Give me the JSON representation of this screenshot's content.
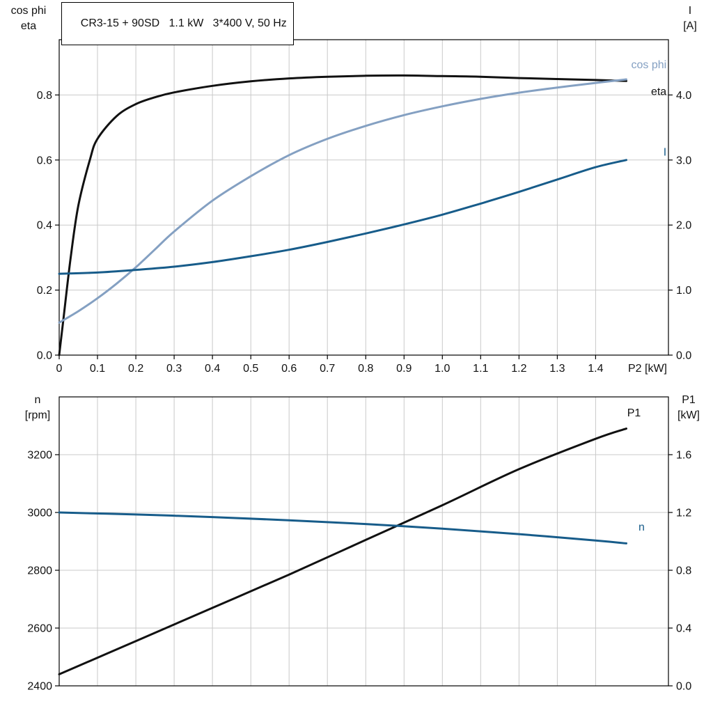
{
  "colors": {
    "black": "#111111",
    "light_blue": "#84a0c2",
    "dark_blue": "#175c8a",
    "grid": "#c9c9c9",
    "frame": "#000000",
    "text": "#111111",
    "background": "#ffffff"
  },
  "chart_data": [
    {
      "type": "line",
      "title": "CR3-15 + 90SD   1.1 kW   3*400 V, 50 Hz",
      "xlabel": "P2 [kW]",
      "xlim": [
        0,
        1.59
      ],
      "grid": true,
      "show_x_tick_labels": true,
      "x_ticks": {
        "values": [
          0,
          0.1,
          0.2,
          0.3,
          0.4,
          0.5,
          0.6,
          0.7,
          0.8,
          0.9,
          1.0,
          1.1,
          1.2,
          1.3,
          1.4
        ],
        "labels": [
          "0",
          "0.1",
          "0.2",
          "0.3",
          "0.4",
          "0.5",
          "0.6",
          "0.7",
          "0.8",
          "0.9",
          "1.0",
          "1.1",
          "1.2",
          "1.3",
          "1.4"
        ]
      },
      "left_axis": {
        "header": [
          "cos phi",
          "eta"
        ],
        "lim": [
          0,
          0.97
        ],
        "ticks": {
          "values": [
            0,
            0.2,
            0.4,
            0.6,
            0.8
          ],
          "labels": [
            "0.0",
            "0.2",
            "0.4",
            "0.6",
            "0.8"
          ]
        }
      },
      "right_axis": {
        "header": [
          "I",
          "[A]"
        ],
        "lim": [
          0,
          4.85
        ],
        "ticks": {
          "values": [
            0,
            1,
            2,
            3,
            4
          ],
          "labels": [
            "0.0",
            "1.0",
            "2.0",
            "3.0",
            "4.0"
          ]
        }
      },
      "series": [
        {
          "name": "eta",
          "axis": "left",
          "color_key": "black",
          "x": [
            0,
            0.01,
            0.03,
            0.05,
            0.08,
            0.1,
            0.15,
            0.2,
            0.25,
            0.3,
            0.4,
            0.5,
            0.6,
            0.7,
            0.8,
            0.9,
            1.0,
            1.1,
            1.2,
            1.3,
            1.4,
            1.48
          ],
          "y": [
            0,
            0.1,
            0.3,
            0.46,
            0.6,
            0.665,
            0.735,
            0.772,
            0.793,
            0.808,
            0.828,
            0.842,
            0.851,
            0.856,
            0.859,
            0.86,
            0.858,
            0.856,
            0.852,
            0.849,
            0.846,
            0.843
          ],
          "label": {
            "text": "eta",
            "x": 1.585,
            "y": 0.81,
            "anchor": "end"
          }
        },
        {
          "name": "cos phi",
          "axis": "left",
          "color_key": "light_blue",
          "x": [
            0,
            0.05,
            0.1,
            0.15,
            0.2,
            0.25,
            0.3,
            0.4,
            0.5,
            0.6,
            0.7,
            0.8,
            0.9,
            1.0,
            1.1,
            1.2,
            1.3,
            1.4,
            1.48
          ],
          "y": [
            0.1,
            0.135,
            0.175,
            0.22,
            0.27,
            0.325,
            0.38,
            0.475,
            0.55,
            0.615,
            0.665,
            0.705,
            0.738,
            0.765,
            0.788,
            0.807,
            0.823,
            0.837,
            0.848
          ],
          "label": {
            "text": "cos phi",
            "x": 1.585,
            "y": 0.893,
            "anchor": "end"
          }
        },
        {
          "name": "I",
          "axis": "right",
          "color_key": "dark_blue",
          "x": [
            0,
            0.1,
            0.2,
            0.3,
            0.4,
            0.5,
            0.6,
            0.7,
            0.8,
            0.9,
            1.0,
            1.1,
            1.2,
            1.3,
            1.4,
            1.48
          ],
          "y": [
            1.25,
            1.27,
            1.31,
            1.36,
            1.43,
            1.52,
            1.62,
            1.74,
            1.87,
            2.01,
            2.16,
            2.33,
            2.51,
            2.7,
            2.89,
            3.0
          ],
          "label": {
            "text": "I",
            "x": 1.585,
            "y": 3.12,
            "anchor": "end"
          }
        }
      ]
    },
    {
      "type": "line",
      "title": "",
      "xlabel": "",
      "xlim": [
        0,
        1.59
      ],
      "grid": true,
      "show_x_tick_labels": false,
      "x_ticks": {
        "values": [
          0,
          0.1,
          0.2,
          0.3,
          0.4,
          0.5,
          0.6,
          0.7,
          0.8,
          0.9,
          1.0,
          1.1,
          1.2,
          1.3,
          1.4
        ],
        "labels": [
          "",
          "",
          "",
          "",
          "",
          "",
          "",
          "",
          "",
          "",
          "",
          "",
          "",
          "",
          ""
        ]
      },
      "left_axis": {
        "header": [
          "n",
          "[rpm]"
        ],
        "lim": [
          2400,
          3400
        ],
        "ticks": {
          "values": [
            2400,
            2600,
            2800,
            3000,
            3200
          ],
          "labels": [
            "2400",
            "2600",
            "2800",
            "3000",
            "3200"
          ]
        }
      },
      "right_axis": {
        "header": [
          "P1",
          "[kW]"
        ],
        "lim": [
          0,
          2.0
        ],
        "ticks": {
          "values": [
            0,
            0.4,
            0.8,
            1.2,
            1.6
          ],
          "labels": [
            "0.0",
            "0.4",
            "0.8",
            "1.2",
            "1.6"
          ]
        }
      },
      "series": [
        {
          "name": "P1",
          "axis": "right",
          "color_key": "black",
          "x": [
            0,
            0.2,
            0.4,
            0.6,
            0.8,
            1.0,
            1.2,
            1.4,
            1.48
          ],
          "y": [
            0.08,
            0.31,
            0.54,
            0.77,
            1.01,
            1.25,
            1.5,
            1.71,
            1.78
          ],
          "label": {
            "text": "P1",
            "x": 1.5,
            "y": 1.89,
            "anchor": "middle"
          }
        },
        {
          "name": "n",
          "axis": "left",
          "color_key": "dark_blue",
          "x": [
            0,
            0.2,
            0.4,
            0.6,
            0.8,
            1.0,
            1.2,
            1.4,
            1.48
          ],
          "y": [
            3000,
            2993,
            2984,
            2973,
            2960,
            2944,
            2925,
            2903,
            2893
          ],
          "label": {
            "text": "n",
            "x": 1.52,
            "y": 2950,
            "anchor": "middle"
          }
        }
      ]
    }
  ]
}
